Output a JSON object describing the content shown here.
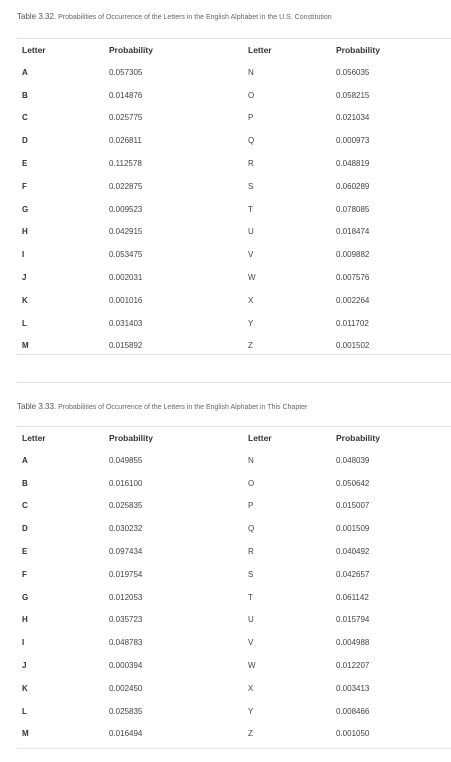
{
  "tables": [
    {
      "number_label": "Table 3.32.",
      "caption": "Probabilities of Occurrence of the Letters in the English Alphabet in the U.S. Constitution",
      "headers": [
        "Letter",
        "Probability",
        "Letter",
        "Probability"
      ],
      "rows": [
        [
          "A",
          "0.057305",
          "N",
          "0.056035"
        ],
        [
          "B",
          "0.014876",
          "O",
          "0.058215"
        ],
        [
          "C",
          "0.025775",
          "P",
          "0.021034"
        ],
        [
          "D",
          "0.026811",
          "Q",
          "0.000973"
        ],
        [
          "E",
          "0.112578",
          "R",
          "0.048819"
        ],
        [
          "F",
          "0.022875",
          "S",
          "0.060289"
        ],
        [
          "G",
          "0.009523",
          "T",
          "0.078085"
        ],
        [
          "H",
          "0.042915",
          "U",
          "0.018474"
        ],
        [
          "I",
          "0.053475",
          "V",
          "0.009882"
        ],
        [
          "J",
          "0.002031",
          "W",
          "0.007576"
        ],
        [
          "K",
          "0.001016",
          "X",
          "0.002264"
        ],
        [
          "L",
          "0.031403",
          "Y",
          "0.011702"
        ],
        [
          "M",
          "0.015892",
          "Z",
          "0.001502"
        ]
      ]
    },
    {
      "number_label": "Table 3.33.",
      "caption": "Probabilities of Occurrence of the Letters in the English Alphabet in This Chapter",
      "headers": [
        "Letter",
        "Probability",
        "Letter",
        "Probability"
      ],
      "rows": [
        [
          "A",
          "0.049855",
          "N",
          "0.048039"
        ],
        [
          "B",
          "0.016100",
          "O",
          "0.050642"
        ],
        [
          "C",
          "0.025835",
          "P",
          "0.015007"
        ],
        [
          "D",
          "0.030232",
          "Q",
          "0.001509"
        ],
        [
          "E",
          "0.097434",
          "R",
          "0.040492"
        ],
        [
          "F",
          "0.019754",
          "S",
          "0.042657"
        ],
        [
          "G",
          "0.012053",
          "T",
          "0.061142"
        ],
        [
          "H",
          "0.035723",
          "U",
          "0.015794"
        ],
        [
          "I",
          "0.048783",
          "V",
          "0.004988"
        ],
        [
          "J",
          "0.000394",
          "W",
          "0.012207"
        ],
        [
          "K",
          "0.002450",
          "X",
          "0.003413"
        ],
        [
          "L",
          "0.025835",
          "Y",
          "0.008466"
        ],
        [
          "M",
          "0.016494",
          "Z",
          "0.001050"
        ]
      ]
    }
  ]
}
